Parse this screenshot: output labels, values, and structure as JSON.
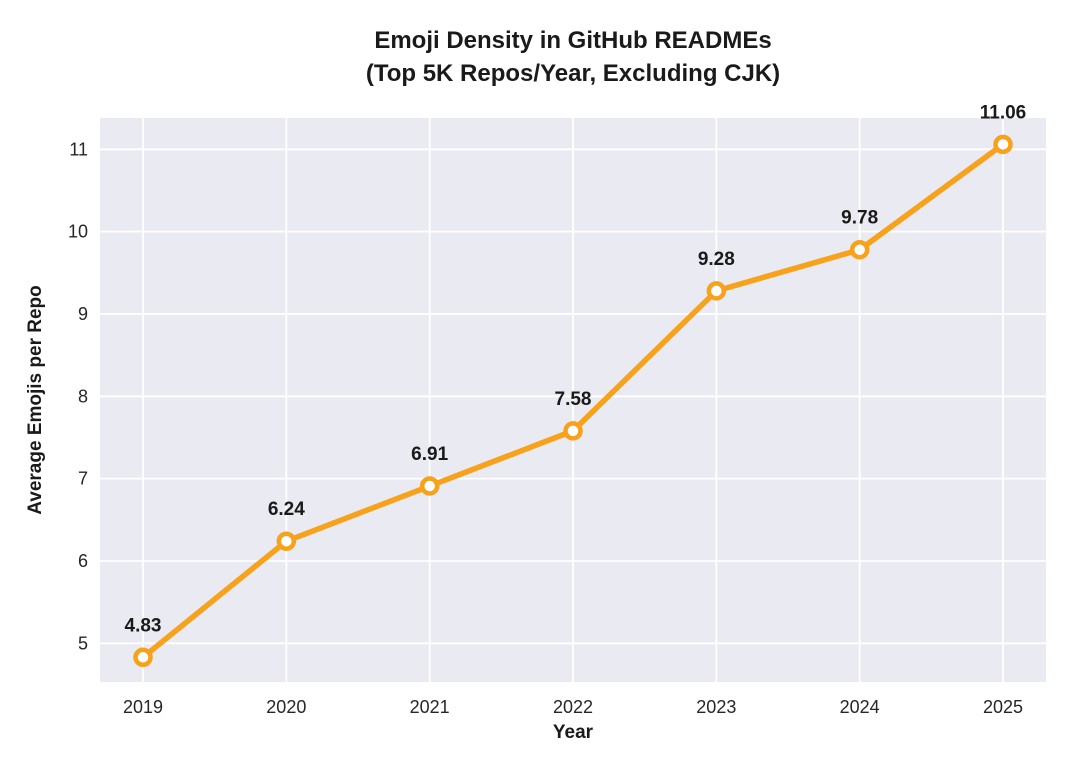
{
  "chart_data": {
    "type": "line",
    "title_line1": "Emoji Density in GitHub READMEs",
    "title_line2": "(Top 5K Repos/Year, Excluding CJK)",
    "xlabel": "Year",
    "ylabel": "Average Emojis per Repo",
    "x": [
      2019,
      2020,
      2021,
      2022,
      2023,
      2024,
      2025
    ],
    "x_tick_labels": [
      "2019",
      "2020",
      "2021",
      "2022",
      "2023",
      "2024",
      "2025"
    ],
    "values": [
      4.83,
      6.24,
      6.91,
      7.58,
      9.28,
      9.78,
      11.06
    ],
    "point_labels": [
      "4.83",
      "6.24",
      "6.91",
      "7.58",
      "9.28",
      "9.78",
      "11.06"
    ],
    "y_ticks": [
      5,
      6,
      7,
      8,
      9,
      10,
      11
    ],
    "xlim": [
      2018.7,
      2025.3
    ],
    "ylim": [
      4.53,
      11.38
    ],
    "grid": true,
    "legend": "none",
    "line_color": "#F7A21A",
    "marker_face": "#FFFFFF",
    "plot_bg": "#EAEAF2",
    "grid_color": "#FFFFFF",
    "text_color": "#262626"
  }
}
